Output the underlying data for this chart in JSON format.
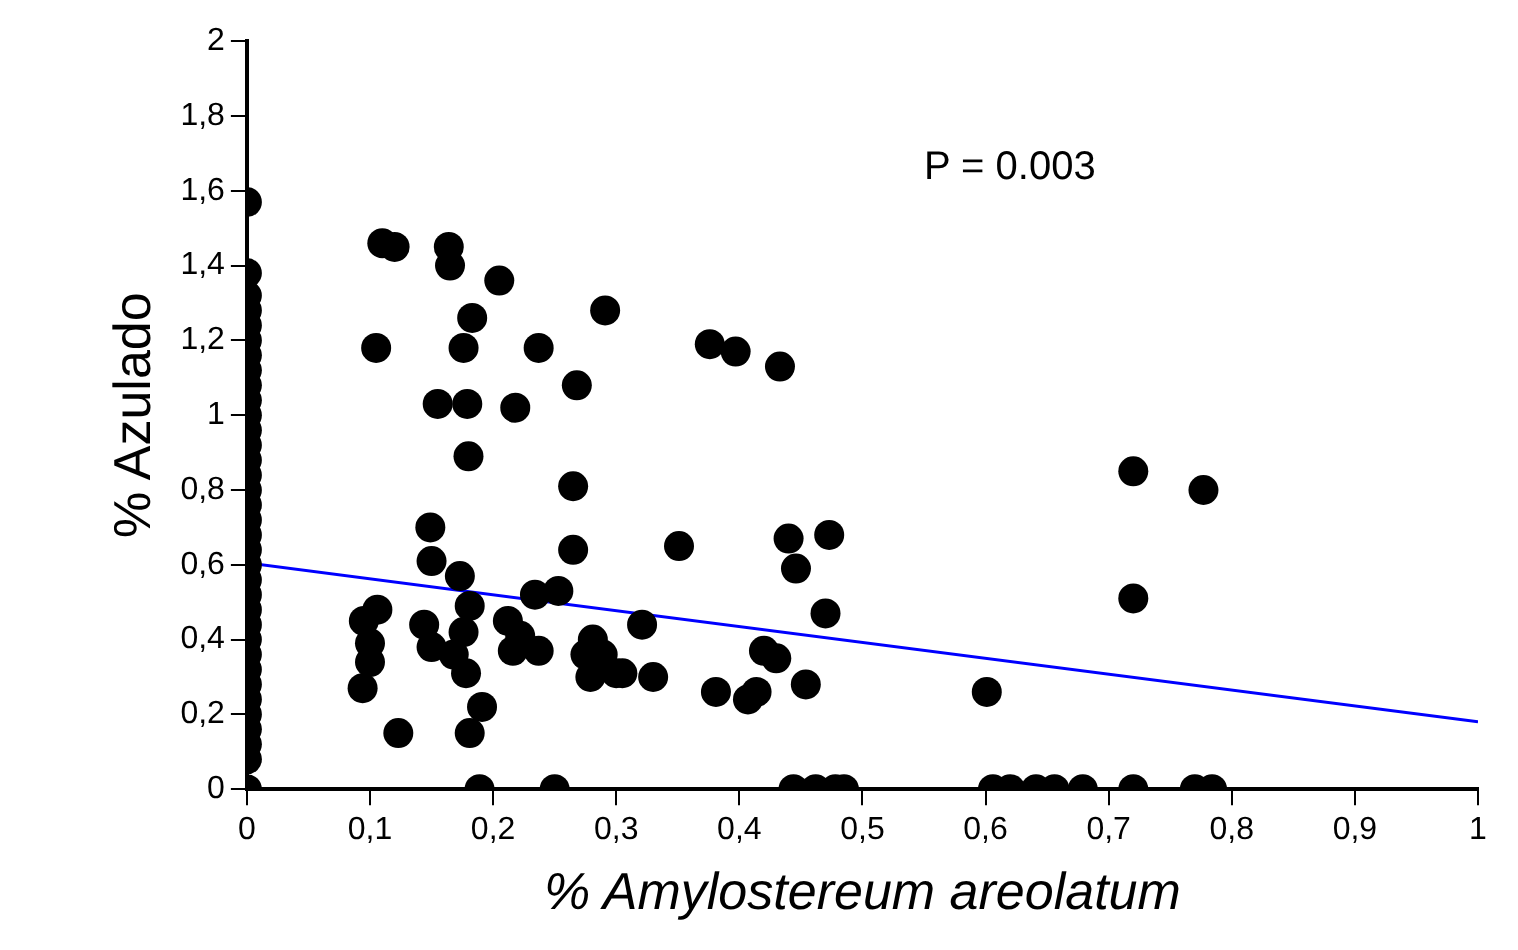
{
  "chart_data": {
    "type": "scatter",
    "xlabel": "% Amylostereum areolatum",
    "ylabel": "% Azulado",
    "annotations": [
      "P = 0.003"
    ],
    "xlim": [
      0,
      1
    ],
    "ylim": [
      0,
      2
    ],
    "xticks": [
      0,
      {
        "value": 0.1,
        "label": "0,1"
      },
      {
        "value": 0.2,
        "label": "0,2"
      },
      {
        "value": 0.3,
        "label": "0,3"
      },
      {
        "value": 0.4,
        "label": "0,4"
      },
      {
        "value": 0.5,
        "label": "0,5"
      },
      {
        "value": 0.6,
        "label": "0,6"
      },
      {
        "value": 0.7,
        "label": "0,7"
      },
      {
        "value": 0.8,
        "label": "0,8"
      },
      {
        "value": 0.9,
        "label": "0,9"
      },
      1
    ],
    "yticks": [
      0,
      {
        "value": 0.2,
        "label": "0,2"
      },
      {
        "value": 0.4,
        "label": "0,4"
      },
      {
        "value": 0.6,
        "label": "0,6"
      },
      {
        "value": 0.8,
        "label": "0,8"
      },
      1,
      {
        "value": 1.2,
        "label": "1,2"
      },
      {
        "value": 1.4,
        "label": "1,4"
      },
      {
        "value": 1.6,
        "label": "1,6"
      },
      {
        "value": 1.8,
        "label": "1,8"
      },
      2
    ],
    "grid": false,
    "legend": false,
    "series": [
      {
        "type": "scatter",
        "marker": "circle",
        "color": "#000000",
        "x": [
          0,
          0,
          0,
          0,
          0,
          0,
          0,
          0,
          0,
          0,
          0,
          0,
          0,
          0,
          0,
          0,
          0,
          0,
          0,
          0,
          0,
          0,
          0,
          0,
          0,
          0,
          0,
          0,
          0,
          0,
          0,
          0,
          0,
          0,
          0,
          0.11,
          0.12,
          0.105,
          0.164,
          0.165,
          0.205,
          0.183,
          0.176,
          0.237,
          0.155,
          0.179,
          0.218,
          0.268,
          0.18,
          0.291,
          0.265,
          0.265,
          0.149,
          0.15,
          0.173,
          0.106,
          0.095,
          0.1,
          0.1,
          0.094,
          0.123,
          0.144,
          0.15,
          0.168,
          0.178,
          0.181,
          0.176,
          0.191,
          0.181,
          0.212,
          0.222,
          0.216,
          0.237,
          0.234,
          0.253,
          0.275,
          0.281,
          0.289,
          0.279,
          0.3,
          0.321,
          0.33,
          0.305,
          0.376,
          0.397,
          0.433,
          0.351,
          0.44,
          0.473,
          0.446,
          0.47,
          0.381,
          0.42,
          0.43,
          0.407,
          0.414,
          0.454,
          0.601,
          0.72,
          0.777,
          0.72,
          0.189,
          0.25,
          0.444,
          0.462,
          0.478,
          0.485,
          0.606,
          0.62,
          0.641,
          0.656,
          0.679,
          0.72,
          0.77,
          0.784
        ],
        "values": [
          0,
          0.08,
          0.12,
          0.16,
          0.2,
          0.24,
          0.28,
          0.32,
          0.36,
          0.4,
          0.44,
          0.48,
          0.52,
          0.56,
          0.6,
          0.64,
          0.68,
          0.72,
          0.76,
          0.8,
          0.84,
          0.88,
          0.92,
          0.96,
          1,
          1.04,
          1.08,
          1.12,
          1.16,
          1.2,
          1.24,
          1.28,
          1.32,
          1.38,
          1.57,
          1.46,
          1.45,
          1.18,
          1.45,
          1.4,
          1.36,
          1.26,
          1.18,
          1.18,
          1.03,
          1.03,
          1.02,
          1.08,
          0.89,
          1.28,
          0.81,
          0.64,
          0.7,
          0.61,
          0.57,
          0.48,
          0.45,
          0.39,
          0.34,
          0.27,
          0.15,
          0.44,
          0.38,
          0.36,
          0.31,
          0.49,
          0.42,
          0.22,
          0.15,
          0.45,
          0.41,
          0.37,
          0.37,
          0.52,
          0.53,
          0.36,
          0.4,
          0.36,
          0.3,
          0.31,
          0.44,
          0.3,
          0.31,
          1.19,
          1.17,
          1.13,
          0.65,
          0.67,
          0.68,
          0.59,
          0.47,
          0.26,
          0.37,
          0.35,
          0.24,
          0.26,
          0.28,
          0.26,
          0.85,
          0.8,
          0.51,
          0,
          0,
          0,
          0,
          0,
          0,
          0,
          0,
          0,
          0,
          0,
          0,
          0,
          0
        ]
      },
      {
        "type": "line",
        "marker": "none",
        "color": "#0000ff",
        "x": [
          0,
          1
        ],
        "values": [
          0.605,
          0.18
        ]
      }
    ]
  }
}
